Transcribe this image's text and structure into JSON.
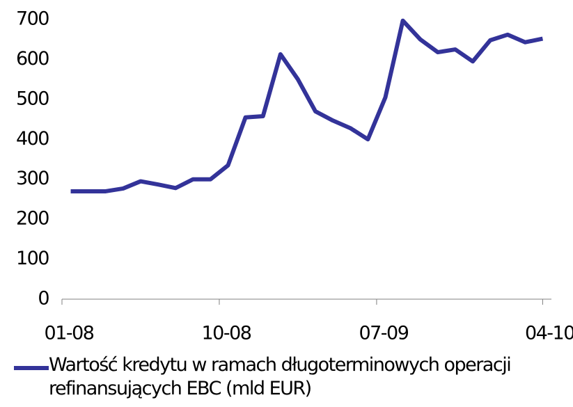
{
  "chart_data": {
    "type": "line",
    "categories": [
      "01-08",
      null,
      null,
      null,
      null,
      null,
      null,
      null,
      null,
      "10-08",
      null,
      null,
      null,
      null,
      null,
      null,
      null,
      null,
      "07-09",
      null,
      null,
      null,
      null,
      null,
      null,
      null,
      null,
      "04-10"
    ],
    "series": [
      {
        "name": "Wartość kredytu w ramach długoterminowych operacji refinansujących EBC (mld EUR)",
        "color": "#333399",
        "values": [
          270,
          270,
          270,
          277,
          295,
          287,
          278,
          300,
          300,
          335,
          455,
          458,
          613,
          550,
          470,
          447,
          428,
          400,
          505,
          697,
          650,
          618,
          625,
          595,
          648,
          662,
          643,
          652
        ]
      }
    ],
    "ylim": [
      0,
      700
    ],
    "yticks": [
      0,
      100,
      200,
      300,
      400,
      500,
      600,
      700
    ],
    "grid": false
  }
}
